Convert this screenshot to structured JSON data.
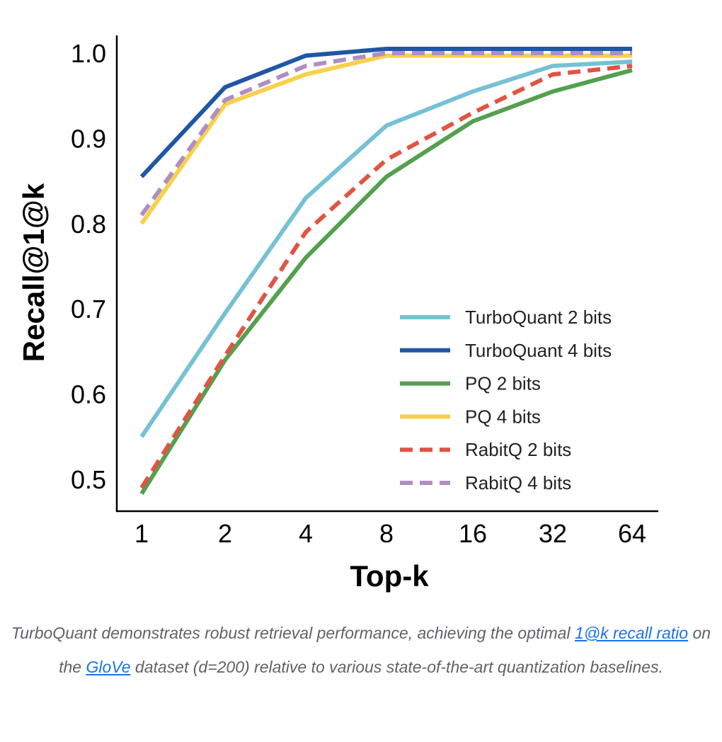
{
  "chart_data": {
    "type": "line",
    "xlabel": "Top-k",
    "ylabel": "Recall@1@k",
    "x": [
      1,
      2,
      4,
      8,
      16,
      32,
      64
    ],
    "x_scale": "log2",
    "ylim": [
      0.47,
      1.02
    ],
    "yticks": [
      "0.5",
      "0.6",
      "0.7",
      "0.8",
      "0.9",
      "1.0"
    ],
    "xticks": [
      "1",
      "2",
      "4",
      "8",
      "16",
      "32",
      "64"
    ],
    "grid": false,
    "legend_position": "bottom-right",
    "series": [
      {
        "name": "TurboQuant 2 bits",
        "color": "#76c1d4",
        "dash": false,
        "values": [
          0.55,
          0.695,
          0.83,
          0.915,
          0.955,
          0.985,
          0.99
        ]
      },
      {
        "name": "TurboQuant 4 bits",
        "color": "#1f57a4",
        "dash": false,
        "values": [
          0.855,
          0.96,
          0.997,
          1.005,
          1.005,
          1.005,
          1.005
        ]
      },
      {
        "name": "PQ 2 bits",
        "color": "#54a04f",
        "dash": false,
        "values": [
          0.483,
          0.64,
          0.76,
          0.855,
          0.92,
          0.955,
          0.98
        ]
      },
      {
        "name": "PQ 4 bits",
        "color": "#f8d04a",
        "dash": false,
        "values": [
          0.8,
          0.94,
          0.975,
          0.997,
          0.997,
          0.997,
          0.997
        ]
      },
      {
        "name": "RabitQ 2 bits",
        "color": "#e05444",
        "dash": true,
        "values": [
          0.49,
          0.645,
          0.79,
          0.875,
          0.93,
          0.975,
          0.985
        ]
      },
      {
        "name": "RabitQ 4 bits",
        "color": "#b08dc4",
        "dash": true,
        "values": [
          0.81,
          0.945,
          0.985,
          1.0,
          1.0,
          1.0,
          1.0
        ]
      }
    ]
  },
  "caption": {
    "part1": "TurboQuant demonstrates robust retrieval performance, achieving the optimal ",
    "link1": "1@k recall ratio",
    "part2": " on the ",
    "link2": "GloVe",
    "part3": " dataset (d=200) relative to various state-of-the-art quantization baselines."
  }
}
